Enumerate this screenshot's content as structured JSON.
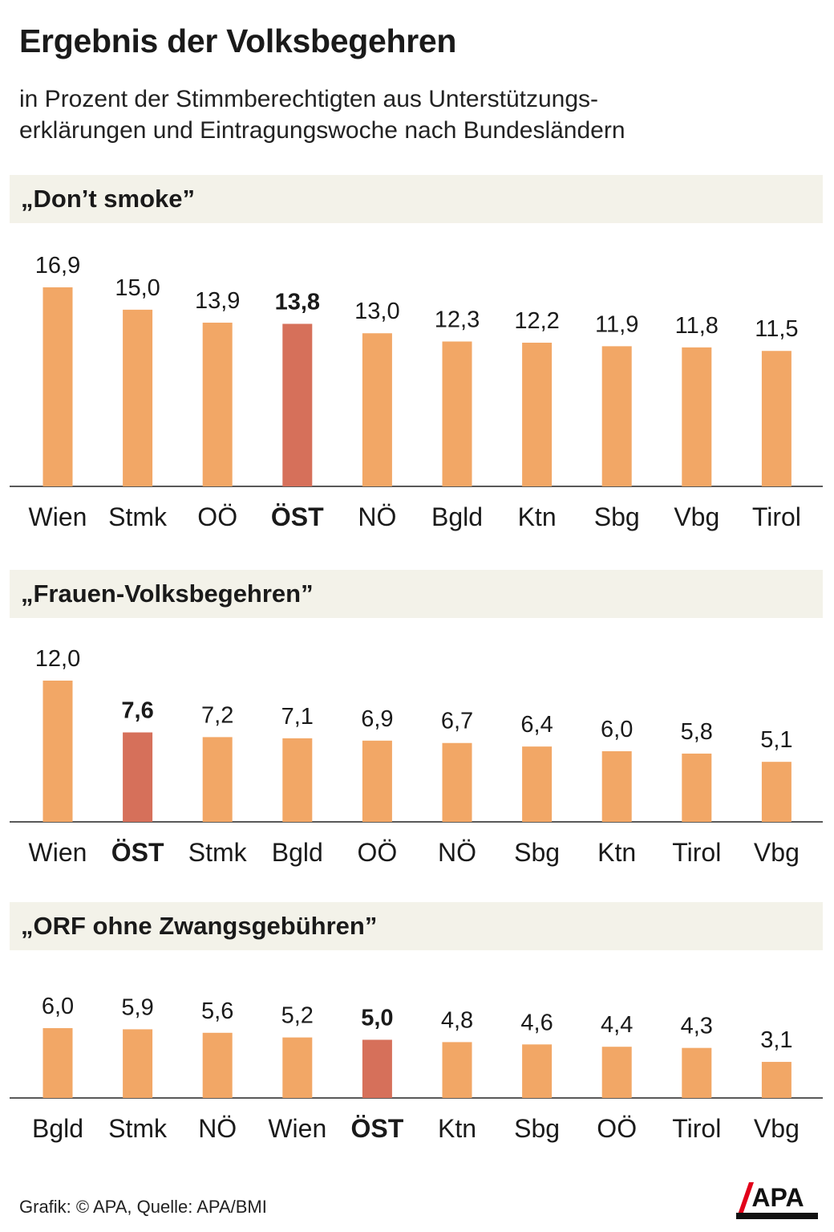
{
  "title": "Ergebnis der Volksbegehren",
  "subtitle_line1": "in Prozent der Stimmberechtigten aus Unterstützungs-",
  "subtitle_line2": "erklärungen und Eintragungswoche nach Bundesländern",
  "footer": "Grafik: © APA, Quelle: APA/BMI",
  "logo_text": "APA",
  "colors": {
    "bar": "#f2a766",
    "highlight": "#d6705a",
    "header_bg": "#f3f2e9",
    "axis": "#222222"
  },
  "chart_data": [
    {
      "type": "bar",
      "title": "„Don’t smoke”",
      "categories": [
        "Wien",
        "Stmk",
        "OÖ",
        "ÖST",
        "NÖ",
        "Bgld",
        "Ktn",
        "Sbg",
        "Vbg",
        "Tirol"
      ],
      "values": [
        16.9,
        15.0,
        13.9,
        13.8,
        13.0,
        12.3,
        12.2,
        11.9,
        11.8,
        11.5
      ],
      "labels": [
        "16,9",
        "15,0",
        "13,9",
        "13,8",
        "13,0",
        "12,3",
        "12,2",
        "11,9",
        "11,8",
        "11,5"
      ],
      "highlight": "ÖST",
      "ylim": [
        0,
        16.9
      ]
    },
    {
      "type": "bar",
      "title": "„Frauen-Volksbegehren”",
      "categories": [
        "Wien",
        "ÖST",
        "Stmk",
        "Bgld",
        "OÖ",
        "NÖ",
        "Sbg",
        "Ktn",
        "Tirol",
        "Vbg"
      ],
      "values": [
        12.0,
        7.6,
        7.2,
        7.1,
        6.9,
        6.7,
        6.4,
        6.0,
        5.8,
        5.1
      ],
      "labels": [
        "12,0",
        "7,6",
        "7,2",
        "7,1",
        "6,9",
        "6,7",
        "6,4",
        "6,0",
        "5,8",
        "5,1"
      ],
      "highlight": "ÖST",
      "ylim": [
        0,
        12.0
      ]
    },
    {
      "type": "bar",
      "title": "„ORF ohne Zwangsgebühren”",
      "categories": [
        "Bgld",
        "Stmk",
        "NÖ",
        "Wien",
        "ÖST",
        "Ktn",
        "Sbg",
        "OÖ",
        "Tirol",
        "Vbg"
      ],
      "values": [
        6.0,
        5.9,
        5.6,
        5.2,
        5.0,
        4.8,
        4.6,
        4.4,
        4.3,
        3.1
      ],
      "labels": [
        "6,0",
        "5,9",
        "5,6",
        "5,2",
        "5,0",
        "4,8",
        "4,6",
        "4,4",
        "4,3",
        "3,1"
      ],
      "highlight": "ÖST",
      "ylim": [
        0,
        6.0
      ]
    }
  ]
}
